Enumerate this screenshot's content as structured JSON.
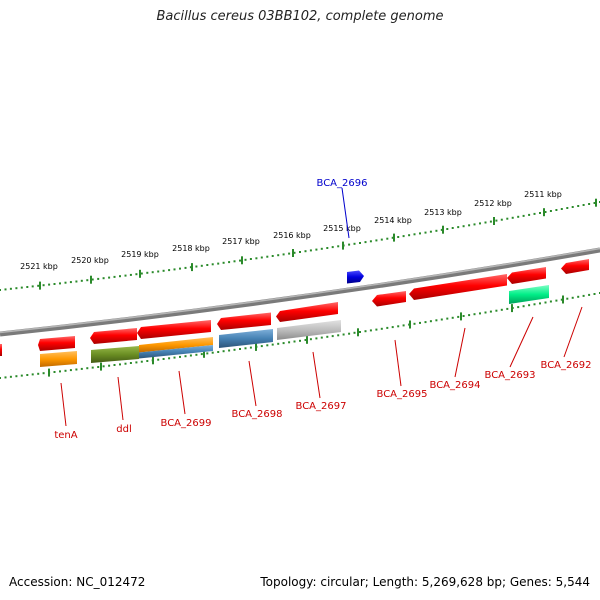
{
  "title": "Bacillus cereus 03BB102, complete genome",
  "footer": {
    "accession": "Accession: NC_012472",
    "summary": "Topology: circular; Length: 5,269,628 bp; Genes: 5,544"
  },
  "colors": {
    "backbone": "#8c8c8c",
    "ruler": "#2a8a2a",
    "label_default": "#cc0000",
    "label_highlight": "#0000cc"
  },
  "ruler_labels": [
    "2521 kbp",
    "2520 kbp",
    "2519 kbp",
    "2518 kbp",
    "2517 kbp",
    "2516 kbp",
    "2515 kbp",
    "2514 kbp",
    "2513 kbp",
    "2512 kbp",
    "2511 kbp"
  ],
  "genes": [
    {
      "label": "BCA_2696",
      "strand": "+",
      "color": "#0000cc",
      "highlight": true
    },
    {
      "label": "tenA",
      "strand": "-",
      "color": "#ff0000"
    },
    {
      "label": "ddl",
      "strand": "-",
      "color": "#ff0000"
    },
    {
      "label": "BCA_2699",
      "strand": "-",
      "color": "#ff0000"
    },
    {
      "label": "BCA_2698",
      "strand": "-",
      "color": "#ff0000"
    },
    {
      "label": "BCA_2697",
      "strand": "-",
      "color": "#ff0000"
    },
    {
      "label": "BCA_2695",
      "strand": "-",
      "color": "#ff0000"
    },
    {
      "label": "BCA_2694",
      "strand": "-",
      "color": "#ff0000"
    },
    {
      "label": "BCA_2693",
      "strand": "-",
      "color": "#ff0000"
    },
    {
      "label": "BCA_2692",
      "strand": "-",
      "color": "#ff0000"
    }
  ],
  "cog_colors": {
    "orange": "#ff9900",
    "olive": "#6b8e23",
    "steel_blue": "#4682b4",
    "gray": "#b8b8b8",
    "spring_green": "#00ee88"
  }
}
